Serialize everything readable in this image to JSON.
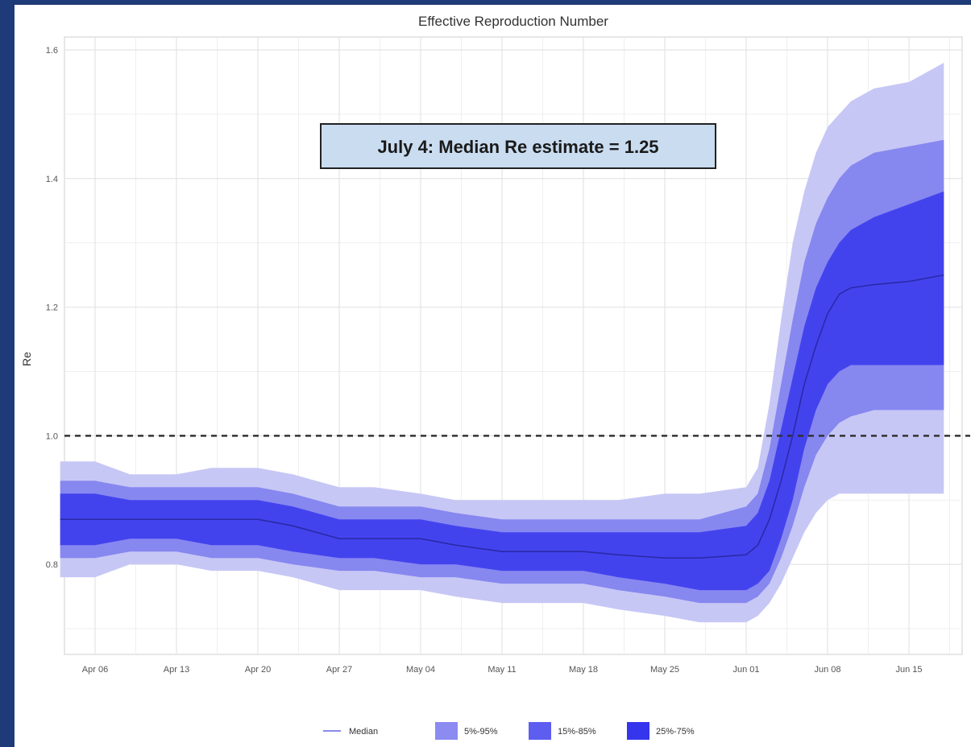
{
  "chart_data": {
    "type": "area",
    "title": "Effective Reproduction Number",
    "xlabel": "",
    "ylabel": "Re",
    "ylim": [
      0.66,
      1.62
    ],
    "x_ticks": [
      "Apr 06",
      "Apr 13",
      "Apr 20",
      "Apr 27",
      "May 04",
      "May 11",
      "May 18",
      "May 25",
      "Jun 01",
      "Jun 08",
      "Jun 15"
    ],
    "y_ticks": [
      0.8,
      1.0,
      1.2,
      1.4,
      1.6
    ],
    "y_tick_labels": [
      "0.8",
      "1.0",
      "1.2",
      "1.4",
      "1.6"
    ],
    "grid": true,
    "legend_position": "bottom",
    "reference_line": {
      "y": 1.0,
      "style": "dashed"
    },
    "annotation": "July 4: Median Re estimate = 1.25",
    "x_dates": [
      "Apr 03",
      "Apr 06",
      "Apr 09",
      "Apr 13",
      "Apr 16",
      "Apr 20",
      "Apr 23",
      "Apr 27",
      "Apr 30",
      "May 04",
      "May 07",
      "May 11",
      "May 14",
      "May 18",
      "May 21",
      "May 25",
      "May 28",
      "Jun 01",
      "Jun 02",
      "Jun 03",
      "Jun 04",
      "Jun 05",
      "Jun 06",
      "Jun 07",
      "Jun 08",
      "Jun 09",
      "Jun 10",
      "Jun 12",
      "Jun 15",
      "Jun 18"
    ],
    "series": [
      {
        "name": "Median",
        "type": "line",
        "values": [
          0.87,
          0.87,
          0.87,
          0.87,
          0.87,
          0.87,
          0.86,
          0.84,
          0.84,
          0.84,
          0.83,
          0.82,
          0.82,
          0.82,
          0.815,
          0.81,
          0.81,
          0.815,
          0.83,
          0.87,
          0.93,
          1.0,
          1.08,
          1.14,
          1.19,
          1.22,
          1.23,
          1.235,
          1.24,
          1.25
        ]
      },
      {
        "name": "5%-95%",
        "type": "band",
        "lower": [
          0.78,
          0.78,
          0.8,
          0.8,
          0.79,
          0.79,
          0.78,
          0.76,
          0.76,
          0.76,
          0.75,
          0.74,
          0.74,
          0.74,
          0.73,
          0.72,
          0.71,
          0.71,
          0.72,
          0.74,
          0.77,
          0.81,
          0.85,
          0.88,
          0.9,
          0.91,
          0.91,
          0.91,
          0.91,
          0.91
        ],
        "upper": [
          0.96,
          0.96,
          0.94,
          0.94,
          0.95,
          0.95,
          0.94,
          0.92,
          0.92,
          0.91,
          0.9,
          0.9,
          0.9,
          0.9,
          0.9,
          0.91,
          0.91,
          0.92,
          0.95,
          1.05,
          1.18,
          1.3,
          1.38,
          1.44,
          1.48,
          1.5,
          1.52,
          1.54,
          1.55,
          1.58
        ]
      },
      {
        "name": "15%-85%",
        "type": "band",
        "lower": [
          0.81,
          0.81,
          0.82,
          0.82,
          0.81,
          0.81,
          0.8,
          0.79,
          0.79,
          0.78,
          0.78,
          0.77,
          0.77,
          0.77,
          0.76,
          0.75,
          0.74,
          0.74,
          0.75,
          0.77,
          0.81,
          0.86,
          0.92,
          0.97,
          1.0,
          1.02,
          1.03,
          1.04,
          1.04,
          1.04
        ]
      },
      {
        "name": "25%-75%",
        "type": "band",
        "lower": [
          0.83,
          0.83,
          0.84,
          0.84,
          0.83,
          0.83,
          0.82,
          0.81,
          0.81,
          0.8,
          0.8,
          0.79,
          0.79,
          0.79,
          0.78,
          0.77,
          0.76,
          0.76,
          0.77,
          0.79,
          0.84,
          0.9,
          0.98,
          1.04,
          1.08,
          1.1,
          1.11,
          1.11,
          1.11,
          1.11
        ],
        "upper": [
          0.91,
          0.91,
          0.9,
          0.9,
          0.9,
          0.9,
          0.89,
          0.87,
          0.87,
          0.87,
          0.86,
          0.85,
          0.85,
          0.85,
          0.85,
          0.85,
          0.85,
          0.86,
          0.88,
          0.93,
          1.01,
          1.09,
          1.17,
          1.23,
          1.27,
          1.3,
          1.32,
          1.34,
          1.36,
          1.38
        ]
      }
    ],
    "upper_15_85": [
      0.93,
      0.93,
      0.92,
      0.92,
      0.92,
      0.92,
      0.91,
      0.89,
      0.89,
      0.89,
      0.88,
      0.87,
      0.87,
      0.87,
      0.87,
      0.87,
      0.87,
      0.89,
      0.91,
      0.98,
      1.08,
      1.18,
      1.27,
      1.33,
      1.37,
      1.4,
      1.42,
      1.44,
      1.45,
      1.46
    ]
  },
  "colors": {
    "band_5_95": "#c7c7f6",
    "band_15_85": "#8787f0",
    "band_25_75": "#4343ee",
    "median": "#2a2aa8",
    "legend_median": "#8a8aea",
    "legend_5_95": "#8b8bf2",
    "legend_15_85": "#5d5df0",
    "legend_25_75": "#3535ee",
    "annotation_bg": "#c9dcf0",
    "grid": "#e4e4e4",
    "background": "#1f3a78"
  }
}
